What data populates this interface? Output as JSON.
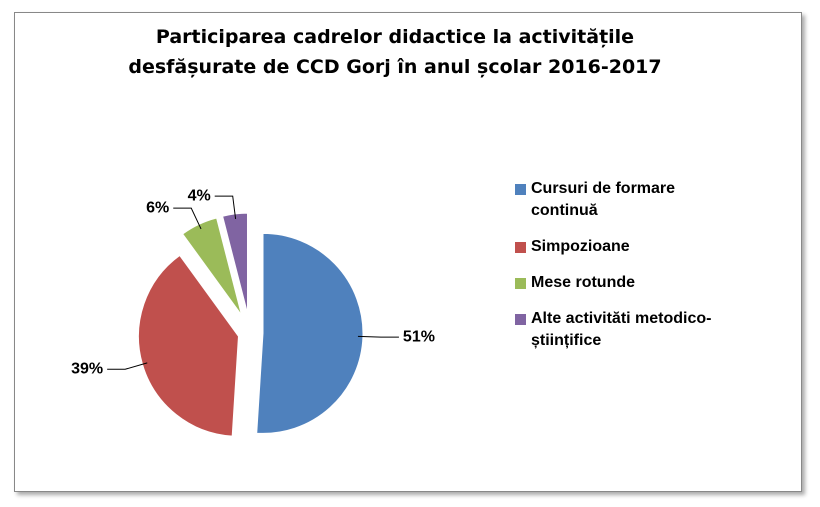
{
  "chart_data": {
    "type": "pie",
    "title": "Participarea cadrelor didactice la activitățile desfășurate de CCD Gorj în anul școlar 2016-2017",
    "categories": [
      "Cursuri de formare continuă",
      "Simpozioane",
      "Mese rotunde",
      "Alte activităti metodico-științifice"
    ],
    "values": [
      51,
      39,
      6,
      4
    ],
    "value_labels": [
      "51%",
      "39%",
      "6%",
      "4%"
    ],
    "colors": [
      "#4f81bd",
      "#c0504d",
      "#9bbb59",
      "#8064a2"
    ],
    "legend": "right"
  }
}
